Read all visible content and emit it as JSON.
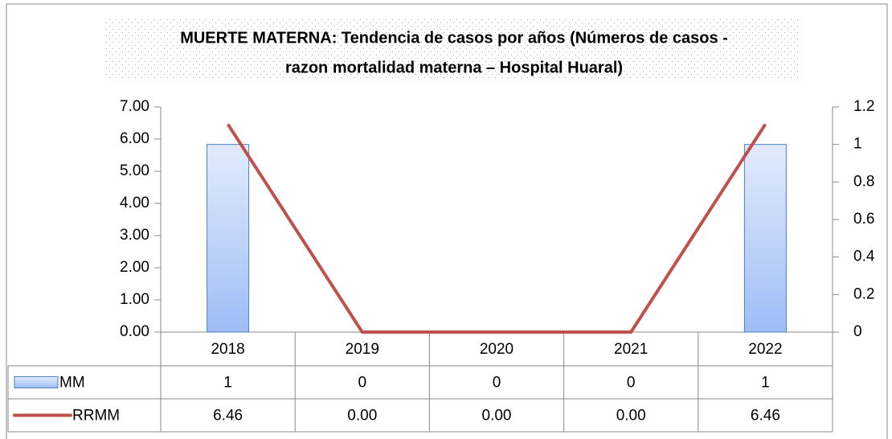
{
  "chart_data": {
    "type": "bar",
    "title": [
      "MUERTE MATERNA: Tendencia de casos por años (Números de casos -",
      "razon mortalidad  materna – Hospital Huaral)"
    ],
    "categories": [
      "2018",
      "2019",
      "2020",
      "2021",
      "2022"
    ],
    "series": [
      {
        "name": "MM",
        "type": "bar",
        "axis": "y2",
        "color": "#9dbdf5",
        "values": [
          1,
          0,
          0,
          0,
          1
        ]
      },
      {
        "name": "RRMM",
        "type": "line",
        "color": "#c0504d",
        "values": [
          6.46,
          0,
          0,
          0,
          6.46
        ],
        "value_labels": [
          "6.46",
          "0.00",
          "0.00",
          "0.00",
          "6.46"
        ]
      }
    ],
    "ylim": [
      0,
      7
    ],
    "yticks": [
      {
        "value": 0,
        "label": "0.00"
      },
      {
        "value": 1,
        "label": "1.00"
      },
      {
        "value": 2,
        "label": "2.00"
      },
      {
        "value": 3,
        "label": "3.00"
      },
      {
        "value": 4,
        "label": "4.00"
      },
      {
        "value": 5,
        "label": "5.00"
      },
      {
        "value": 6,
        "label": "6.00"
      },
      {
        "value": 7,
        "label": "7.00"
      }
    ],
    "y2lim": [
      0,
      1.2
    ],
    "y2ticks": [
      0,
      0.2,
      0.4,
      0.6,
      0.8,
      1,
      1.2
    ]
  }
}
